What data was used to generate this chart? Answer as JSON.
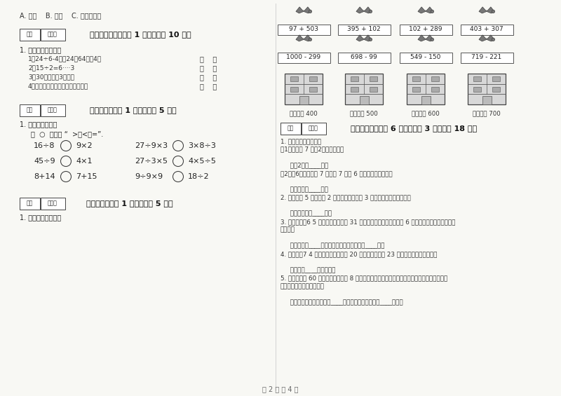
{
  "bg_color": "#f8f8f4",
  "text_color": "#222222",
  "title_line": "A. 平移    B. 旋转    C. 平移和旋转",
  "section5_header": "五、判断对与错（共 1 大题，共计 10 分）",
  "section5_sub": "1. 我是公正小法官。",
  "section5_items": [
    "1．24÷6-4读作24陆64等于4．",
    "2．15÷2=6····3",
    "3．30个十等于3个百．",
    "4．量小鰭嘴的身才用毫米作单位．"
  ],
  "section6_header": "六、比一比（共 1 大题，共计 5 分）",
  "section6_sub": "1. 我会判断大小。",
  "section6_inst": "在  ○  里填上 “  >、<或=”.",
  "section6_rows_left": [
    "16÷8   ○   9×2",
    "45÷9   ○   4×1",
    "8+14   ○   7+15"
  ],
  "section6_rows_right": [
    "27÷9×3   ○   3×8÷3",
    "27÷3×5   ○   4×5÷5",
    "9÷9×9   ○   18÷2"
  ],
  "section7_header": "七、连一连（共 1 大题，共计 5 分）",
  "section7_sub": "1. 估一估，连一连。",
  "right_exprs_row1": [
    "97 + 503",
    "395 + 102",
    "102 + 289",
    "403 + 307"
  ],
  "right_exprs_row2": [
    "1000 - 299",
    "698 - 99",
    "549 - 150",
    "719 - 221"
  ],
  "right_building_labels": [
    "得数接近 400",
    "得数大约 500",
    "得数接近 600",
    "得数大约 700"
  ],
  "section8_header": "八、解决问题（共 6 小题，每题 3 分，共计 18 分）",
  "section8_q1_lines": [
    "1. 新学期老师排座位。",
    "（1）每排坐 7 人，2排坐多少人？",
    "",
    "     答：2排坐____人。",
    "（2）有6排，每排坐 7 人，第 7 排坐 6 人，一共有多少人？",
    "",
    "     答：一共有____人。"
  ],
  "section8_q2_lines": [
    "2. 商店卖出 5 包白糖和 2 包红糖，平均每包 3 元錢，一共卖了多少錢？",
    "",
    "     答：一共卖了____元。"
  ],
  "section8_q3_lines": [
    "3. 停车场上有6 5 辆小汽车，开走了 31 辆，还剩下多少辆？又开来 6 辆，现在停车场上有小汽车",
    "多少辆？",
    "",
    "     答：还剩下____辆，现在停车场上有小汽车____辆。"
  ],
  "section8_q4_lines": [
    "4. 故事书有7 4 页，小囡第一天看了 20 页，第二天看了 23 页，还剩多少页没有看？",
    "",
    "     答：还剩____页没有看。"
  ],
  "section8_q5_lines": [
    "5. 一根铁丝长 60 厘米，工人师傅用 8 厘米长的铁丝做一个铁钉。这根铁丝一共可以做几个这样",
    "的铁钉？还剩下多少厘米？",
    "",
    "     答：这根铁丝一共可以做____个这样的铁钉，还剩下____厘米。"
  ],
  "footer": "第 2 页 共 4 页"
}
